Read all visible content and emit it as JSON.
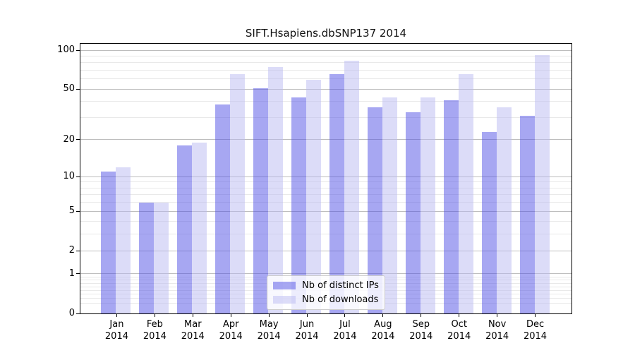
{
  "title": "SIFT.Hsapiens.dbSNP137 2014",
  "colors": {
    "ips_bar": "#a7a7f2",
    "downloads_bar": "#dcdcf8",
    "ips_fill_rgba": "rgba(79,79,229,0.5)",
    "downloads_fill_rgba": "rgba(185,185,241,0.5)",
    "major_grid": "#bdbdbd",
    "minor_grid": "#e9e9e9",
    "frame": "#000000"
  },
  "legend": {
    "items": [
      {
        "label": "Nb of distinct IPs",
        "series": "ips"
      },
      {
        "label": "Nb of downloads",
        "series": "downloads"
      }
    ]
  },
  "chart_data": {
    "type": "bar",
    "title": "SIFT.Hsapiens.dbSNP137 2014",
    "categories": [
      "Jan",
      "Feb",
      "Mar",
      "Apr",
      "May",
      "Jun",
      "Jul",
      "Aug",
      "Sep",
      "Oct",
      "Nov",
      "Dec"
    ],
    "category_year": "2014",
    "series": [
      {
        "name": "Nb of distinct IPs",
        "values": [
          11,
          6,
          18,
          38,
          51,
          43,
          65,
          36,
          33,
          41,
          23,
          31
        ]
      },
      {
        "name": "Nb of downloads",
        "values": [
          12,
          6,
          19,
          65,
          74,
          59,
          83,
          43,
          43,
          65,
          36,
          92
        ]
      }
    ],
    "xlabel": "",
    "ylabel": "",
    "y_axis": {
      "scale": "log10(1+x)",
      "tick_values": [
        100,
        50,
        20,
        10,
        5,
        2,
        1,
        0
      ],
      "tick_labels": [
        "100",
        "50",
        "20",
        "10",
        "5",
        "2",
        "1",
        "0"
      ],
      "minor_tick_values": [
        0.2,
        0.3,
        0.4,
        0.5,
        0.6,
        0.7,
        0.8,
        0.9,
        3,
        4,
        6,
        7,
        8,
        9,
        30,
        40,
        60,
        70,
        80,
        90
      ],
      "top_value": 112
    },
    "grid": true,
    "legend_position": "bottom-center"
  }
}
